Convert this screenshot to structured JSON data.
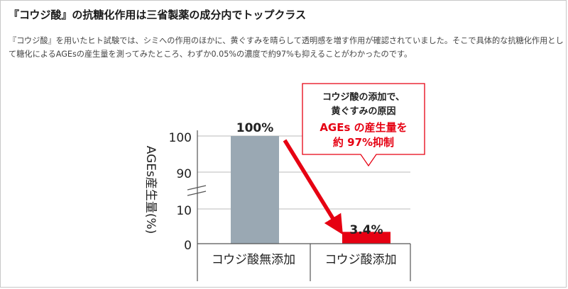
{
  "article": {
    "heading": "『コウジ酸』の抗糖化作用は三省製薬の成分内でトップクラス",
    "body_line1": "『コウジ酸』を用いたヒト試験では、シミへの作用のほかに、黄ぐすみを晴らして透明感を増す作用が確認されていました。そこで具体的な抗糖化作用とし",
    "body_line2": "て糖化によるAGEsの産生量を測ってみたところ、わずか0.05%の濃度で約97%も抑えることがわかったのです。"
  },
  "chart_data": {
    "type": "bar",
    "categories": [
      "コウジ酸無添加",
      "コウジ酸添加"
    ],
    "values": [
      100,
      3.4
    ],
    "data_labels": [
      "100%",
      "3.4%"
    ],
    "ylabel": "AGEs産生量(%)",
    "yticks": [
      "100",
      "90",
      "10",
      "0"
    ],
    "y_axis_break": true,
    "bar_colors": [
      "#9aa8b3",
      "#e60012"
    ],
    "arrow_color": "#e60012",
    "callout": {
      "line1": "コウジ酸の添加で、",
      "line2": "黄ぐすみの原因",
      "line3": "AGEs の産生量を",
      "line4": "約 97%抑制",
      "border_color": "#e60012",
      "highlight_color": "#e60012"
    }
  }
}
